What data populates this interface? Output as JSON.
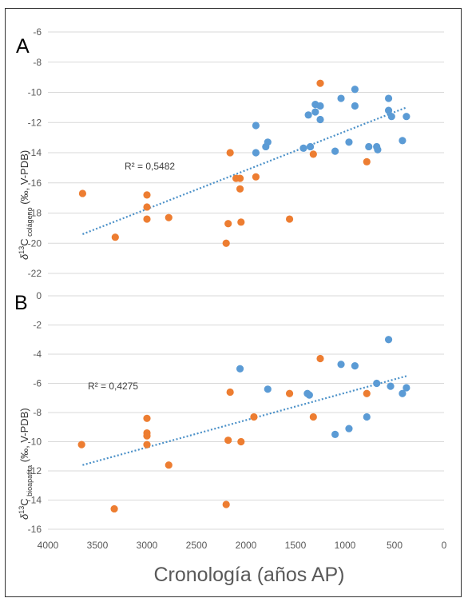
{
  "colors": {
    "series_blue": "#5b9bd5",
    "series_orange": "#ed7d31",
    "trendline": "#4a90c8",
    "grid": "#d9d9d9",
    "axis_text": "#595959"
  },
  "xlabel": "Cronología (años AP)",
  "chart_data": [
    {
      "type": "scatter",
      "panel": "A",
      "ylabel": {
        "delta": "δ",
        "sup": "13",
        "C": "C",
        "sub": " colágeno",
        "units": " (‰, V-PDB)"
      },
      "xlim": [
        4000,
        0
      ],
      "x_reversed": true,
      "ylim": [
        -22,
        -6
      ],
      "xticks": [],
      "yticks": [
        -6,
        -8,
        -10,
        -12,
        -14,
        -16,
        -18,
        -20,
        -22
      ],
      "grid": "horizontal",
      "annotation": "R² = 0,5482",
      "trendline": {
        "x": [
          3650,
          380
        ],
        "y": [
          -19.4,
          -11.0
        ]
      },
      "series": [
        {
          "color": "#5b9bd5",
          "points": [
            [
              1900,
              -12.2
            ],
            [
              1900,
              -14.0
            ],
            [
              1800,
              -13.6
            ],
            [
              1780,
              -13.3
            ],
            [
              1420,
              -13.7
            ],
            [
              1370,
              -11.5
            ],
            [
              1350,
              -13.6
            ],
            [
              1300,
              -10.8
            ],
            [
              1300,
              -11.3
            ],
            [
              1250,
              -11.8
            ],
            [
              1250,
              -10.9
            ],
            [
              1100,
              -13.9
            ],
            [
              1040,
              -10.4
            ],
            [
              960,
              -13.3
            ],
            [
              900,
              -9.8
            ],
            [
              900,
              -10.9
            ],
            [
              760,
              -13.6
            ],
            [
              680,
              -13.6
            ],
            [
              670,
              -13.8
            ],
            [
              560,
              -10.4
            ],
            [
              560,
              -11.2
            ],
            [
              530,
              -11.6
            ],
            [
              420,
              -13.2
            ],
            [
              380,
              -11.6
            ]
          ]
        },
        {
          "color": "#ed7d31",
          "points": [
            [
              3650,
              -16.7
            ],
            [
              3320,
              -19.6
            ],
            [
              3000,
              -16.8
            ],
            [
              3000,
              -17.6
            ],
            [
              3000,
              -18.4
            ],
            [
              2780,
              -18.3
            ],
            [
              2200,
              -20.0
            ],
            [
              2180,
              -18.7
            ],
            [
              2160,
              -14.0
            ],
            [
              2100,
              -15.7
            ],
            [
              2060,
              -15.7
            ],
            [
              2060,
              -16.4
            ],
            [
              2050,
              -18.6
            ],
            [
              1900,
              -15.6
            ],
            [
              1560,
              -18.4
            ],
            [
              1320,
              -14.1
            ],
            [
              1250,
              -9.4
            ],
            [
              780,
              -14.6
            ]
          ]
        }
      ]
    },
    {
      "type": "scatter",
      "panel": "B",
      "ylabel": {
        "delta": "δ",
        "sup": "13",
        "C": "C",
        "sub": " bioapatita",
        "units": " (‰, V-PDB)"
      },
      "xlim": [
        4000,
        0
      ],
      "x_reversed": true,
      "ylim": [
        -16,
        0
      ],
      "xticks": [
        4000,
        3500,
        3000,
        2500,
        2000,
        1500,
        1000,
        500,
        0
      ],
      "yticks": [
        0,
        -2,
        -4,
        -6,
        -8,
        -10,
        -12,
        -14,
        -16
      ],
      "grid": "horizontal",
      "annotation": "R² = 0,4275",
      "trendline": {
        "x": [
          3650,
          380
        ],
        "y": [
          -11.6,
          -5.5
        ]
      },
      "series": [
        {
          "color": "#5b9bd5",
          "points": [
            [
              2060,
              -5.0
            ],
            [
              1780,
              -6.4
            ],
            [
              1380,
              -6.7
            ],
            [
              1360,
              -6.8
            ],
            [
              1100,
              -9.5
            ],
            [
              1040,
              -4.7
            ],
            [
              960,
              -9.1
            ],
            [
              900,
              -4.8
            ],
            [
              780,
              -8.3
            ],
            [
              680,
              -6.0
            ],
            [
              560,
              -3.0
            ],
            [
              540,
              -6.2
            ],
            [
              420,
              -6.7
            ],
            [
              380,
              -6.3
            ]
          ]
        },
        {
          "color": "#ed7d31",
          "points": [
            [
              3660,
              -10.2
            ],
            [
              3330,
              -14.6
            ],
            [
              3000,
              -8.4
            ],
            [
              3000,
              -9.4
            ],
            [
              3000,
              -9.6
            ],
            [
              3000,
              -10.2
            ],
            [
              2780,
              -11.6
            ],
            [
              2200,
              -14.3
            ],
            [
              2180,
              -9.9
            ],
            [
              2160,
              -6.6
            ],
            [
              2050,
              -10.0
            ],
            [
              1920,
              -8.3
            ],
            [
              1560,
              -6.7
            ],
            [
              1320,
              -8.3
            ],
            [
              1250,
              -4.3
            ],
            [
              780,
              -6.7
            ]
          ]
        }
      ]
    }
  ]
}
